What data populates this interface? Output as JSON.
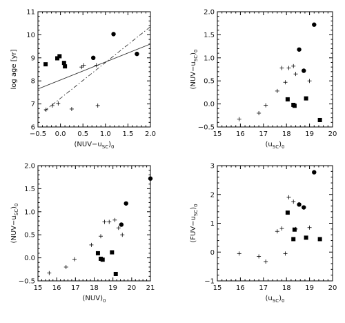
{
  "chart_data": [
    {
      "type": "scatter",
      "xlabel": "(NUV−u",
      "xlabel_sub": "SC",
      "xlabel_tail": ")",
      "xlabel_sub2": "0",
      "ylabel": "log age [yr]",
      "xlim": [
        -0.5,
        2.0
      ],
      "ylim": [
        6,
        11
      ],
      "xticks": [
        -0.5,
        0.0,
        0.5,
        1.0,
        1.5,
        2.0
      ],
      "xtick_labels": [
        "−0.5",
        "0.0",
        "0.5",
        "1.0",
        "1.5",
        "2.0"
      ],
      "yticks": [
        6,
        7,
        8,
        9,
        10,
        11
      ],
      "ytick_labels": [
        "6",
        "7",
        "8",
        "9",
        "10",
        "11"
      ],
      "series": [
        {
          "marker": "plus",
          "points": [
            [
              -0.32,
              6.75
            ],
            [
              -0.18,
              6.93
            ],
            [
              -0.05,
              7.02
            ],
            [
              0.25,
              6.78
            ],
            [
              0.47,
              8.6
            ],
            [
              0.52,
              8.68
            ],
            [
              0.8,
              8.68
            ],
            [
              0.83,
              6.93
            ]
          ]
        },
        {
          "marker": "square",
          "points": [
            [
              -0.33,
              8.72
            ],
            [
              -0.07,
              8.98
            ],
            [
              -0.02,
              9.07
            ],
            [
              0.08,
              8.78
            ],
            [
              0.1,
              8.63
            ]
          ]
        },
        {
          "marker": "circle",
          "points": [
            [
              0.73,
              9.0
            ],
            [
              1.18,
              10.03
            ],
            [
              1.7,
              9.17
            ]
          ]
        }
      ],
      "lines": [
        {
          "style": "solid",
          "points": [
            [
              -0.5,
              7.65
            ],
            [
              2.0,
              9.6
            ]
          ]
        },
        {
          "style": "dashdot",
          "points": [
            [
              -0.35,
              6.7
            ],
            [
              2.0,
              10.35
            ]
          ]
        }
      ]
    },
    {
      "type": "scatter",
      "xlabel": "(u",
      "xlabel_sub": "SC",
      "xlabel_tail": ")",
      "xlabel_sub2": "0",
      "ylabel": "(NUV−u",
      "ylabel_sub": "SC",
      "ylabel_tail": ")",
      "ylabel_sub2": "0",
      "xlim": [
        15,
        20
      ],
      "ylim": [
        -0.5,
        2.0
      ],
      "xticks": [
        15,
        16,
        17,
        18,
        19,
        20
      ],
      "xtick_labels": [
        "15",
        "16",
        "17",
        "18",
        "19",
        "20"
      ],
      "yticks": [
        -0.5,
        0.0,
        0.5,
        1.0,
        1.5,
        2.0
      ],
      "ytick_labels": [
        "−0.5",
        "0.0",
        "0.5",
        "1.0",
        "1.5",
        "2.0"
      ],
      "series": [
        {
          "marker": "plus",
          "points": [
            [
              15.95,
              -0.33
            ],
            [
              16.8,
              -0.2
            ],
            [
              17.1,
              -0.03
            ],
            [
              17.6,
              0.28
            ],
            [
              17.8,
              0.78
            ],
            [
              17.95,
              0.47
            ],
            [
              18.1,
              0.78
            ],
            [
              18.3,
              0.82
            ],
            [
              18.4,
              0.65
            ],
            [
              19.0,
              0.5
            ]
          ]
        },
        {
          "marker": "square",
          "points": [
            [
              18.05,
              0.1
            ],
            [
              18.3,
              -0.02
            ],
            [
              18.35,
              -0.04
            ],
            [
              18.85,
              0.12
            ],
            [
              19.45,
              -0.35
            ]
          ]
        },
        {
          "marker": "circle",
          "points": [
            [
              18.55,
              1.18
            ],
            [
              18.75,
              0.72
            ],
            [
              19.2,
              1.72
            ]
          ]
        }
      ],
      "lines": []
    },
    {
      "type": "scatter",
      "xlabel": "(NUV)",
      "xlabel_sub": "0",
      "xlabel_tail": "",
      "xlabel_sub2": "",
      "ylabel": "(NUV−u",
      "ylabel_sub": "SC",
      "ylabel_tail": ")",
      "ylabel_sub2": "0",
      "xlim": [
        15,
        21
      ],
      "ylim": [
        -0.5,
        2.0
      ],
      "xticks": [
        15,
        16,
        17,
        18,
        19,
        20,
        21
      ],
      "xtick_labels": [
        "15",
        "16",
        "17",
        "18",
        "19",
        "20",
        "21"
      ],
      "yticks": [
        -0.5,
        0.0,
        0.5,
        1.0,
        1.5,
        2.0
      ],
      "ytick_labels": [
        "−0.5",
        "0.0",
        "0.5",
        "1.0",
        "1.5",
        "2.0"
      ],
      "series": [
        {
          "marker": "plus",
          "points": [
            [
              15.6,
              -0.33
            ],
            [
              16.5,
              -0.2
            ],
            [
              16.95,
              -0.03
            ],
            [
              17.85,
              0.28
            ],
            [
              18.35,
              0.47
            ],
            [
              18.55,
              0.78
            ],
            [
              18.8,
              0.78
            ],
            [
              19.1,
              0.82
            ],
            [
              19.5,
              0.5
            ],
            [
              19.3,
              0.65
            ]
          ]
        },
        {
          "marker": "square",
          "points": [
            [
              18.2,
              0.1
            ],
            [
              18.35,
              -0.02
            ],
            [
              18.45,
              -0.04
            ],
            [
              18.95,
              0.12
            ],
            [
              19.15,
              -0.35
            ]
          ]
        },
        {
          "marker": "circle",
          "points": [
            [
              19.45,
              0.72
            ],
            [
              19.7,
              1.18
            ],
            [
              21.0,
              1.72
            ]
          ]
        }
      ],
      "lines": []
    },
    {
      "type": "scatter",
      "xlabel": "(u",
      "xlabel_sub": "SC",
      "xlabel_tail": ")",
      "xlabel_sub2": "0",
      "ylabel": "(FUV−u",
      "ylabel_sub": "SC",
      "ylabel_tail": ")",
      "ylabel_sub2": "0",
      "xlim": [
        15,
        20
      ],
      "ylim": [
        -1,
        3
      ],
      "xticks": [
        15,
        16,
        17,
        18,
        19,
        20
      ],
      "xtick_labels": [
        "15",
        "16",
        "17",
        "18",
        "19",
        "20"
      ],
      "yticks": [
        -1,
        0,
        1,
        2,
        3
      ],
      "ytick_labels": [
        "−1",
        "0",
        "1",
        "2",
        "3"
      ],
      "series": [
        {
          "marker": "plus",
          "points": [
            [
              15.95,
              -0.05
            ],
            [
              16.8,
              -0.15
            ],
            [
              17.1,
              -0.33
            ],
            [
              17.6,
              0.72
            ],
            [
              17.8,
              0.82
            ],
            [
              17.95,
              -0.05
            ],
            [
              18.1,
              1.9
            ],
            [
              18.3,
              1.75
            ],
            [
              18.4,
              0.8
            ],
            [
              19.0,
              0.85
            ]
          ]
        },
        {
          "marker": "square",
          "points": [
            [
              18.05,
              1.37
            ],
            [
              18.3,
              0.45
            ],
            [
              18.35,
              0.78
            ],
            [
              18.85,
              0.5
            ],
            [
              19.45,
              0.45
            ]
          ]
        },
        {
          "marker": "circle",
          "points": [
            [
              18.55,
              1.65
            ],
            [
              18.75,
              1.55
            ],
            [
              19.2,
              2.77
            ]
          ]
        }
      ],
      "lines": []
    }
  ]
}
